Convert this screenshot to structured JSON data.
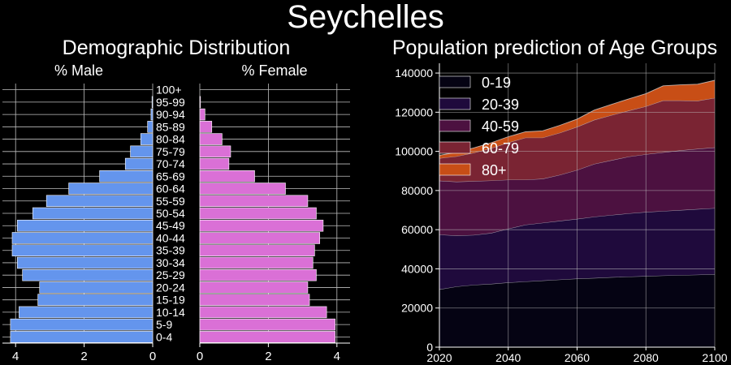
{
  "page_title": "Seychelles",
  "colors": {
    "background": "#000000",
    "male": "#6495ED",
    "female": "#DA70D6",
    "grid": "#bfbfbf"
  },
  "pyramid": {
    "title": "Demographic Distribution",
    "male_label": "% Male",
    "female_label": "% Female"
  },
  "chart_data": [
    {
      "type": "bar",
      "orientation": "horizontal",
      "title": "Demographic Distribution",
      "categories": [
        "0-4",
        "5-9",
        "10-14",
        "15-19",
        "20-24",
        "25-29",
        "30-34",
        "35-39",
        "40-44",
        "45-49",
        "50-54",
        "55-59",
        "60-64",
        "65-69",
        "70-74",
        "75-79",
        "80-84",
        "85-89",
        "90-94",
        "95-99",
        "100+"
      ],
      "x_ticks": [
        "4",
        "2",
        "0",
        "2",
        "4"
      ],
      "xlim": [
        0,
        4.4
      ],
      "grid": true,
      "series": [
        {
          "name": "% Male",
          "color": "#6495ED",
          "values": [
            4.15,
            4.15,
            3.9,
            3.35,
            3.3,
            3.8,
            3.95,
            4.1,
            4.1,
            3.95,
            3.5,
            3.1,
            2.45,
            1.55,
            0.8,
            0.65,
            0.35,
            0.15,
            0.05,
            0.02,
            0.0
          ]
        },
        {
          "name": "% Female",
          "color": "#DA70D6",
          "values": [
            3.95,
            3.95,
            3.7,
            3.2,
            3.15,
            3.4,
            3.3,
            3.35,
            3.5,
            3.6,
            3.4,
            3.15,
            2.5,
            1.6,
            0.85,
            0.9,
            0.65,
            0.35,
            0.15,
            0.02,
            0.0
          ]
        }
      ]
    },
    {
      "type": "area",
      "stacked": true,
      "title": "Population prediction of Age Groups",
      "x": [
        2020,
        2025,
        2030,
        2035,
        2040,
        2045,
        2050,
        2055,
        2060,
        2065,
        2070,
        2075,
        2080,
        2085,
        2090,
        2095,
        2100
      ],
      "xlim": [
        2020,
        2100
      ],
      "ylim": [
        0,
        145000
      ],
      "x_ticks": [
        "2020",
        "2040",
        "2060",
        "2080",
        "2100"
      ],
      "y_ticks": [
        "0",
        "20000",
        "40000",
        "60000",
        "80000",
        "100000",
        "120000",
        "140000"
      ],
      "legend_position": "top-left",
      "grid": true,
      "series": [
        {
          "name": "0-19",
          "color": "#050313",
          "values": [
            29500,
            31000,
            31800,
            32300,
            33000,
            33500,
            34000,
            34500,
            35000,
            35300,
            35700,
            36000,
            36300,
            36600,
            36800,
            37000,
            37300
          ]
        },
        {
          "name": "20-39",
          "color": "#1F0A3C",
          "values": [
            28000,
            26000,
            25500,
            26000,
            27500,
            29000,
            29500,
            30000,
            30500,
            31300,
            31800,
            32300,
            32700,
            32900,
            33200,
            33500,
            33700
          ]
        },
        {
          "name": "40-59",
          "color": "#4C1140",
          "values": [
            27500,
            27500,
            27500,
            26800,
            25000,
            23000,
            22500,
            23500,
            25000,
            27000,
            28000,
            29000,
            29500,
            30000,
            30500,
            30800,
            31000
          ]
        },
        {
          "name": "60-79",
          "color": "#7A2433",
          "values": [
            11500,
            13000,
            14500,
            16500,
            19000,
            21500,
            21000,
            21500,
            22000,
            22500,
            23000,
            23500,
            24500,
            26500,
            25500,
            24500,
            25300
          ]
        },
        {
          "name": "80+",
          "color": "#C84E16",
          "values": [
            1500,
            2000,
            2500,
            2800,
            3000,
            3000,
            3500,
            3800,
            4000,
            5000,
            5500,
            6000,
            6500,
            7500,
            8000,
            8500,
            9000
          ]
        }
      ]
    }
  ]
}
